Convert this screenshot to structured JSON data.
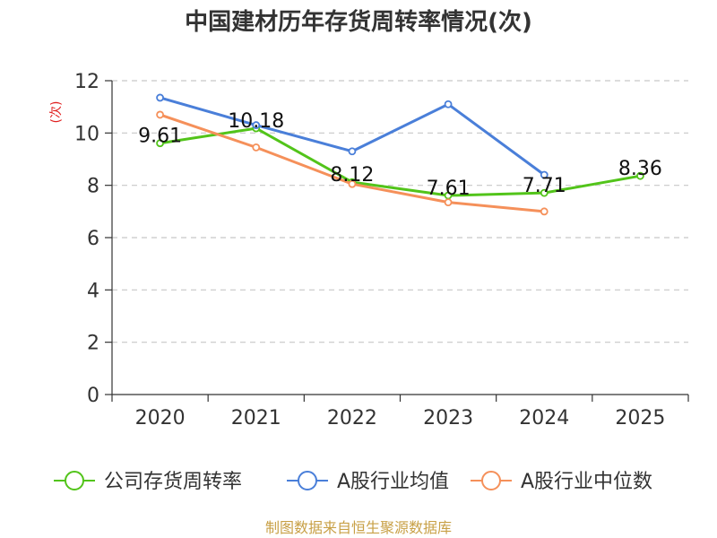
{
  "chart_data": {
    "type": "line",
    "title": "中国建材历年存货周转率情况(次)",
    "ylabel": "(次)",
    "xlabel": "",
    "categories": [
      "2020",
      "2021",
      "2022",
      "2023",
      "2024",
      "2025"
    ],
    "ylim": [
      0,
      12
    ],
    "yticks": [
      0,
      2,
      4,
      6,
      8,
      10,
      12
    ],
    "grid": true,
    "legend_position": "bottom",
    "series": [
      {
        "name": "公司存货周转率",
        "color": "#52c41a",
        "values": [
          9.61,
          10.18,
          8.12,
          7.61,
          7.71,
          8.36
        ],
        "labels": [
          "9.61",
          "10.18",
          "8.12",
          "7.61",
          "7.71",
          "8.36"
        ]
      },
      {
        "name": "A股行业均值",
        "color": "#4a7fd9",
        "values": [
          11.35,
          10.3,
          9.3,
          11.1,
          8.4,
          null
        ]
      },
      {
        "name": "A股行业中位数",
        "color": "#f5905a",
        "values": [
          10.7,
          9.45,
          8.05,
          7.35,
          7.0,
          null
        ]
      }
    ],
    "source": "制图数据来自恒生聚源数据库"
  }
}
